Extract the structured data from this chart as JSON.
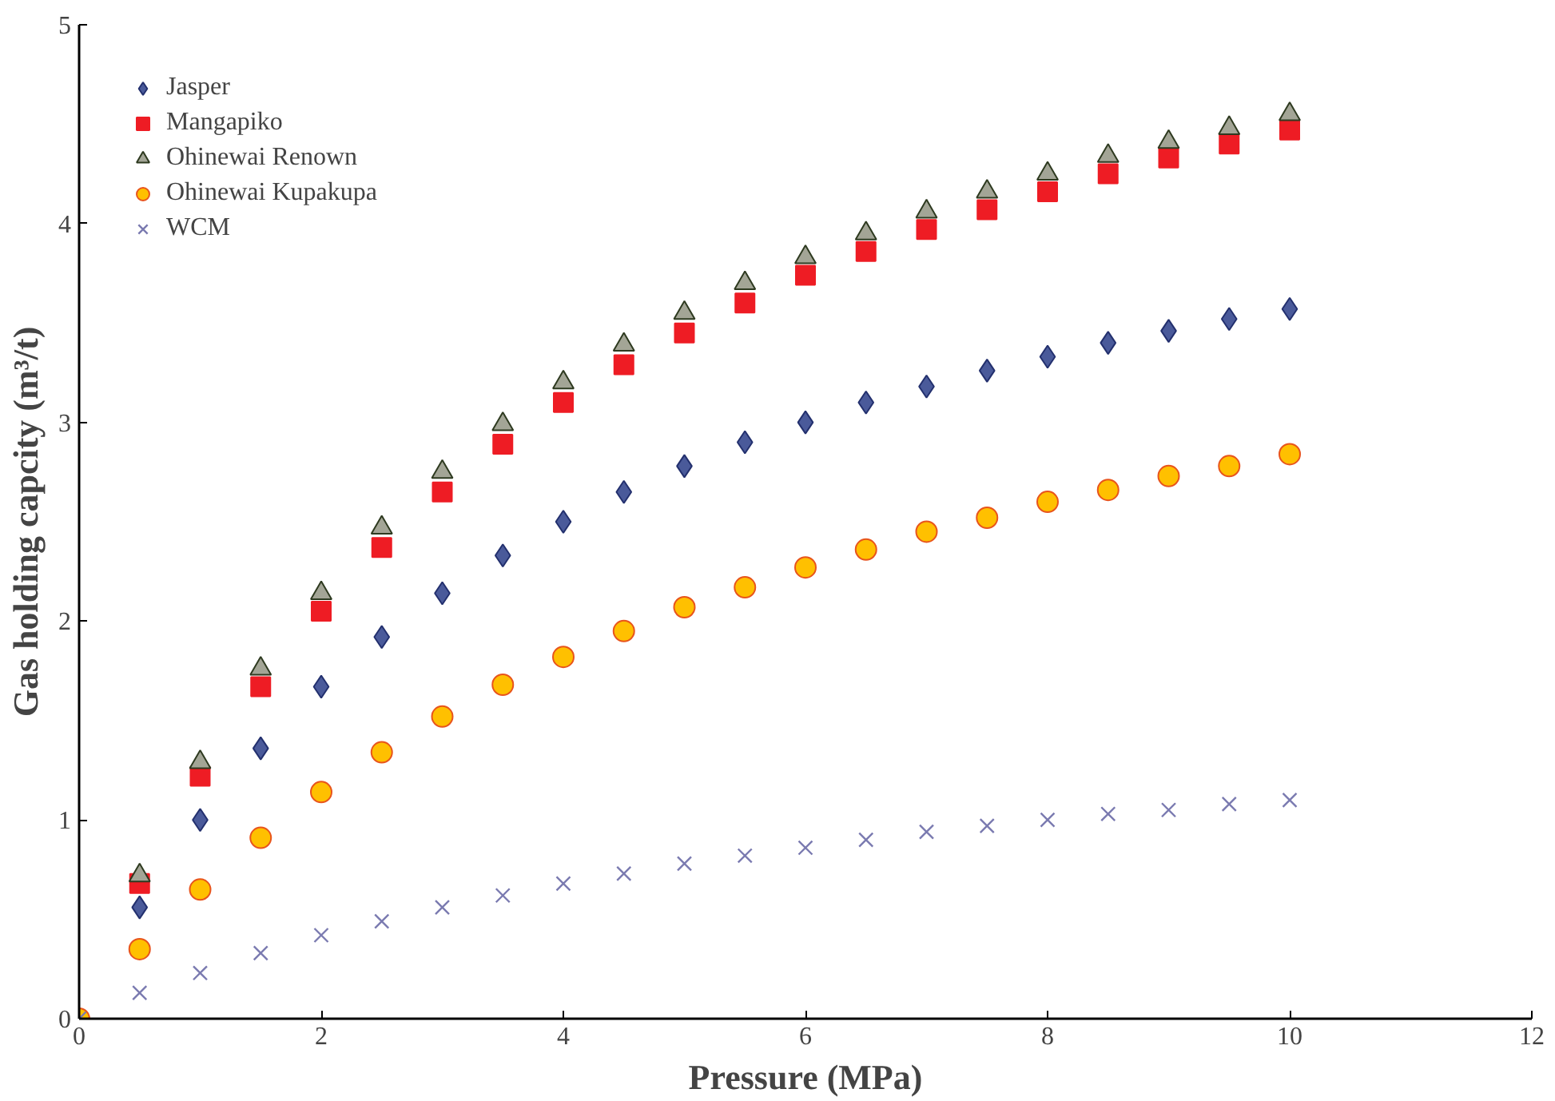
{
  "chart_data": {
    "type": "scatter",
    "xlabel": "Pressure (MPa)",
    "ylabel": "Gas holding capcity (m³/t)",
    "x": [
      0,
      0.5,
      1,
      1.5,
      2,
      2.5,
      3,
      3.5,
      4,
      4.5,
      5,
      5.5,
      6,
      6.5,
      7,
      7.5,
      8,
      8.5,
      9,
      9.5,
      10
    ],
    "xlim": [
      0,
      12
    ],
    "xticks": [
      0,
      2,
      4,
      6,
      8,
      10,
      12
    ],
    "ylim": [
      0,
      5
    ],
    "yticks": [
      0,
      1,
      2,
      3,
      4,
      5
    ],
    "grid": false,
    "legend": "top left",
    "series": [
      {
        "name": "Jasper",
        "color": "#4a5a9a",
        "marker": "diamond",
        "values": [
          null,
          0.56,
          1.0,
          1.36,
          1.67,
          1.92,
          2.14,
          2.33,
          2.5,
          2.65,
          2.78,
          2.9,
          3.0,
          3.1,
          3.18,
          3.26,
          3.33,
          3.4,
          3.46,
          3.52,
          3.57
        ]
      },
      {
        "name": "Mangapiko",
        "color": "#ee1c24",
        "marker": "square",
        "values": [
          null,
          0.68,
          1.22,
          1.67,
          2.05,
          2.37,
          2.65,
          2.89,
          3.1,
          3.29,
          3.45,
          3.6,
          3.74,
          3.86,
          3.97,
          4.07,
          4.16,
          4.25,
          4.33,
          4.4,
          4.47
        ]
      },
      {
        "name": "Ohinewai Renown",
        "color": "#a3a596",
        "marker": "triangle",
        "values": [
          null,
          0.72,
          1.29,
          1.76,
          2.14,
          2.47,
          2.75,
          2.99,
          3.2,
          3.39,
          3.55,
          3.7,
          3.83,
          3.95,
          4.06,
          4.16,
          4.25,
          4.34,
          4.41,
          4.48,
          4.55
        ]
      },
      {
        "name": "Ohinewai Kupakupa",
        "color": "#ffc000",
        "marker": "circle",
        "values": [
          0,
          0.35,
          0.65,
          0.91,
          1.14,
          1.34,
          1.52,
          1.68,
          1.82,
          1.95,
          2.07,
          2.17,
          2.27,
          2.36,
          2.45,
          2.52,
          2.6,
          2.66,
          2.73,
          2.78,
          2.84
        ]
      },
      {
        "name": "WCM",
        "color": "#7a7ab0",
        "marker": "cross",
        "values": [
          0,
          0.13,
          0.23,
          0.33,
          0.42,
          0.49,
          0.56,
          0.62,
          0.68,
          0.73,
          0.78,
          0.82,
          0.86,
          0.9,
          0.94,
          0.97,
          1.0,
          1.03,
          1.05,
          1.08,
          1.1
        ]
      }
    ]
  }
}
